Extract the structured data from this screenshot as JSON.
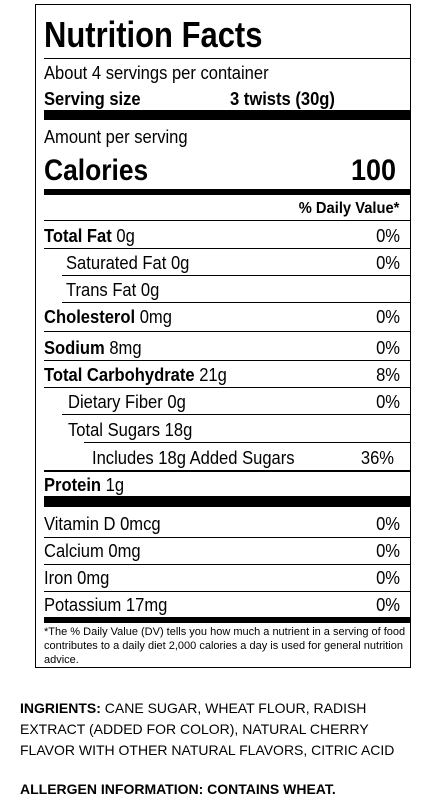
{
  "label": {
    "title": "Nutrition Facts",
    "servings_per_container": "About 4 servings per container",
    "serving_size_label": "Serving size",
    "serving_size_value": "3 twists (30g)",
    "amount_per_serving": "Amount per serving",
    "calories_label": "Calories",
    "calories_value": "100",
    "daily_value_header": "% Daily Value*",
    "nutrients": [
      {
        "name": "Total Fat",
        "amount": "0g",
        "dv": "0%"
      },
      {
        "name": "Saturated Fat",
        "amount": "0g",
        "dv": "0%"
      },
      {
        "name": "Trans Fat",
        "amount": "0g",
        "dv": ""
      },
      {
        "name": "Cholesterol",
        "amount": "0mg",
        "dv": "0%"
      },
      {
        "name": "Sodium",
        "amount": "8mg",
        "dv": "0%"
      },
      {
        "name": "Total Carbohydrate",
        "amount": "21g",
        "dv": "8%"
      },
      {
        "name": "Dietary Fiber",
        "amount": "0g",
        "dv": "0%"
      },
      {
        "name": "Total Sugars",
        "amount": "18g",
        "dv": ""
      },
      {
        "name": "Includes 18g Added Sugars",
        "amount": "",
        "dv": "36%"
      },
      {
        "name": "Protein",
        "amount": "1g",
        "dv": ""
      }
    ],
    "vitamins": [
      {
        "text": "Vitamin D 0mcg",
        "dv": "0%"
      },
      {
        "text": "Calcium 0mg",
        "dv": "0%"
      },
      {
        "text": "Iron 0mg",
        "dv": "0%"
      },
      {
        "text": "Potassium 17mg",
        "dv": "0%"
      }
    ],
    "footnote_start": "*The % Daily Value (DV) tells you how much a nutrient in a serving of food contributes to a daily diet 2,000 calories a day is used for general nutrition advice."
  },
  "ingredients": {
    "label": "INGRIENTS:",
    "text": "CANE SUGAR, WHEAT FLOUR, RADISH EXTRACT (ADDED FOR COLOR), NATURAL CHERRY FLAVOR WITH OTHER NATURAL FLAVORS, CITRIC ACID"
  },
  "allergen": {
    "label": "ALLERGEN INFORMATION: CONTAINS WHEAT."
  }
}
